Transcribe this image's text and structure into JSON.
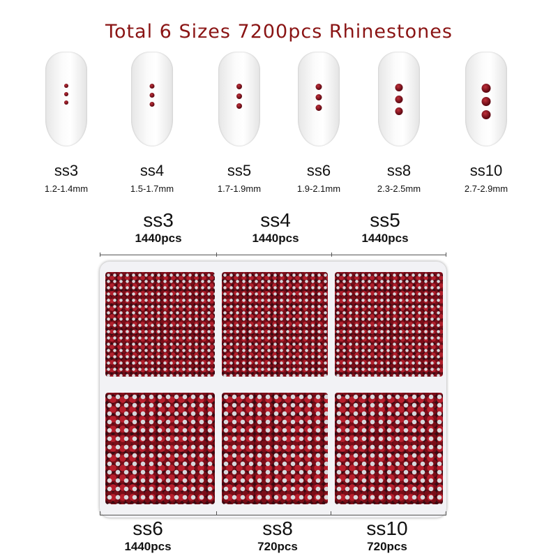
{
  "title": "Total 6 Sizes 7200pcs Rhinestones",
  "sizes": [
    {
      "name": "ss3",
      "mm": "1.2-1.4mm"
    },
    {
      "name": "ss4",
      "mm": "1.5-1.7mm"
    },
    {
      "name": "ss5",
      "mm": "1.7-1.9mm"
    },
    {
      "name": "ss6",
      "mm": "1.9-2.1mm"
    },
    {
      "name": "ss8",
      "mm": "2.3-2.5mm"
    },
    {
      "name": "ss10",
      "mm": "2.7-2.9mm"
    }
  ],
  "box_top": [
    {
      "name": "ss3",
      "pcs": "1440pcs"
    },
    {
      "name": "ss4",
      "pcs": "1440pcs"
    },
    {
      "name": "ss5",
      "pcs": "1440pcs"
    }
  ],
  "box_bottom": [
    {
      "name": "ss6",
      "pcs": "1440pcs"
    },
    {
      "name": "ss8",
      "pcs": "720pcs"
    },
    {
      "name": "ss10",
      "pcs": "720pcs"
    }
  ],
  "colors": {
    "title": "#8a1414",
    "stone": "#8b0f1c"
  }
}
